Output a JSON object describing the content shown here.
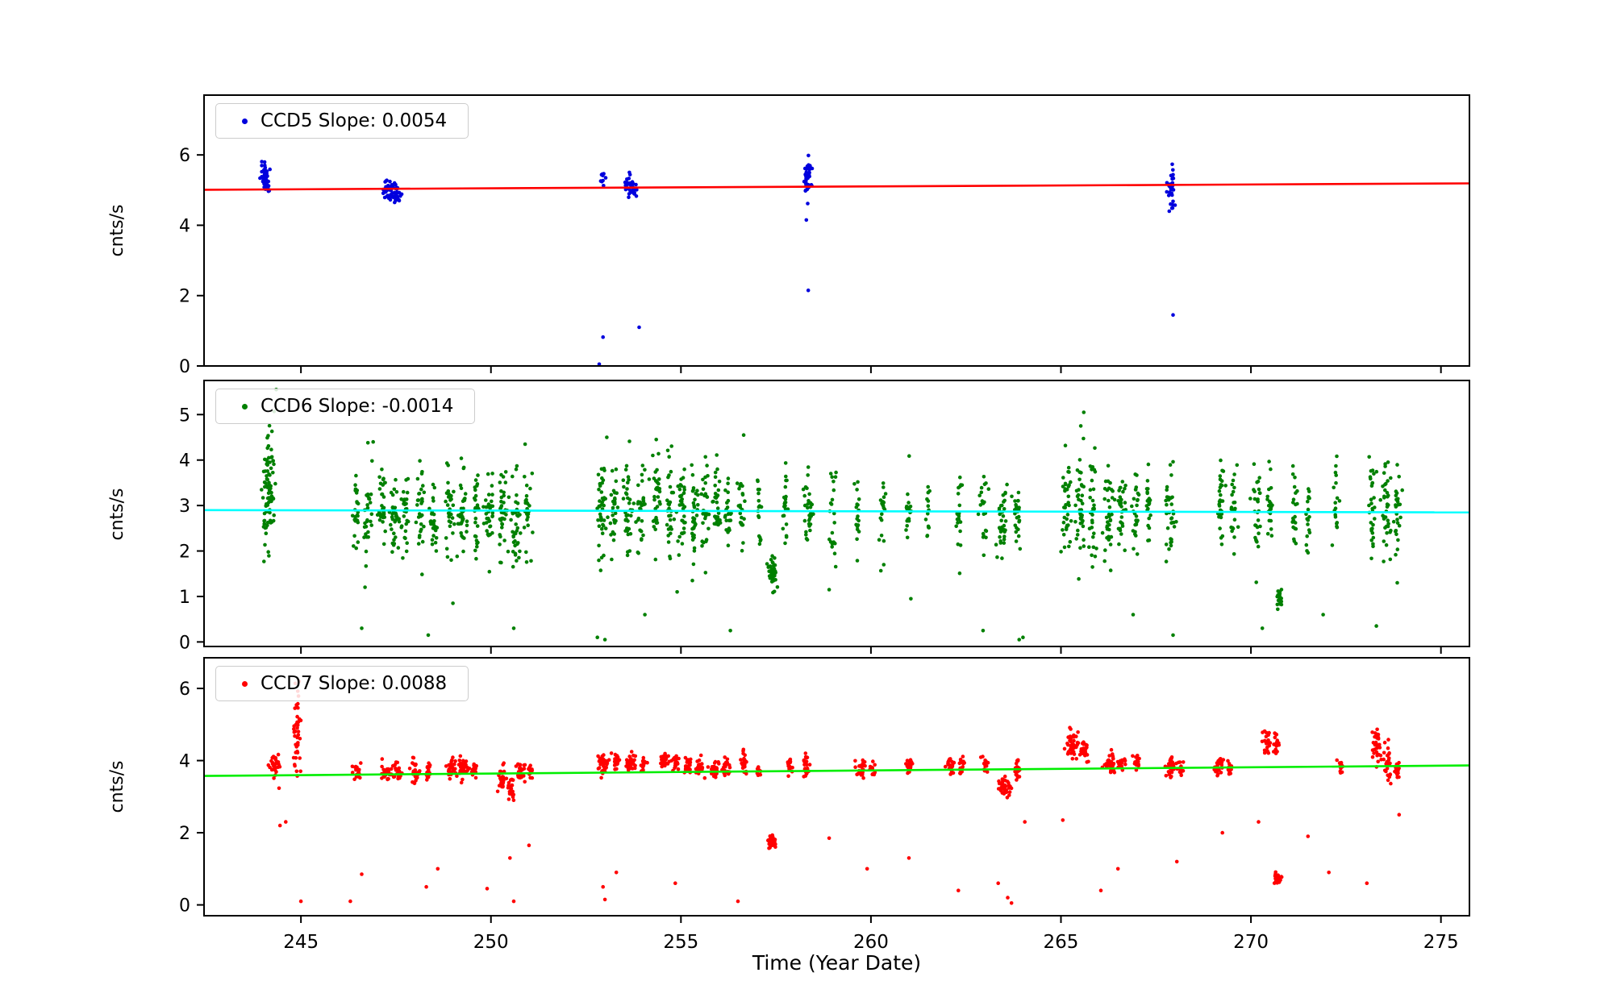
{
  "xlabel_text": "Time (Year Date)",
  "chart_data": {
    "type": "scatter",
    "xlabel": "Time (Year Date)",
    "xlim": [
      242.45,
      275.75
    ],
    "x_ticks": [
      245,
      250,
      255,
      260,
      265,
      270,
      275
    ],
    "grid": false,
    "legend_position": "upper left",
    "panels": [
      {
        "name": "CCD5",
        "legend": "CCD5 Slope: 0.0054",
        "slope": 0.0054,
        "ylabel": "cnts/s",
        "ylim": [
          0,
          7.7
        ],
        "y_ticks": [
          0,
          2,
          4,
          6
        ],
        "point_color": "#0000dd",
        "trend_color": "#ff0000",
        "trend": {
          "y_start": 5.01,
          "y_end": 5.19
        },
        "clusters": [
          [
            244.05,
            5.4,
            0.05,
            0.2,
            40
          ],
          [
            244.1,
            5.1,
            0.04,
            0.08,
            12
          ],
          [
            247.3,
            5.0,
            0.1,
            0.13,
            45
          ],
          [
            247.55,
            4.85,
            0.06,
            0.1,
            20
          ],
          [
            252.95,
            5.35,
            0.03,
            0.1,
            9
          ],
          [
            253.6,
            5.15,
            0.05,
            0.15,
            18
          ],
          [
            253.75,
            5.0,
            0.05,
            0.12,
            20
          ],
          [
            258.35,
            5.45,
            0.05,
            0.3,
            30
          ],
          [
            258.35,
            5.05,
            0.04,
            0.08,
            10
          ],
          [
            267.9,
            5.05,
            0.05,
            0.25,
            32
          ]
        ],
        "outliers": [
          [
            252.85,
            0.05
          ],
          [
            252.95,
            0.82
          ],
          [
            253.9,
            1.1
          ],
          [
            258.35,
            2.15
          ],
          [
            258.3,
            4.15
          ],
          [
            267.95,
            1.45
          ],
          [
            267.85,
            4.4
          ]
        ]
      },
      {
        "name": "CCD6",
        "legend": "CCD6 Slope: -0.0014",
        "slope": -0.0014,
        "ylabel": "cnts/s",
        "ylim": [
          -0.1,
          5.75
        ],
        "y_ticks": [
          0,
          1,
          2,
          3,
          4,
          5
        ],
        "point_color": "#008000",
        "trend_color": "#00ffff",
        "trend": {
          "y_start": 2.9,
          "y_end": 2.85
        },
        "clusters": [
          [
            244.15,
            3.35,
            0.08,
            0.72,
            85
          ],
          [
            246.45,
            2.8,
            0.05,
            0.42,
            25
          ],
          [
            246.75,
            2.85,
            0.05,
            0.48,
            30
          ],
          [
            247.15,
            2.9,
            0.06,
            0.5,
            32
          ],
          [
            247.45,
            2.85,
            0.06,
            0.48,
            32
          ],
          [
            247.75,
            2.9,
            0.05,
            0.48,
            28
          ],
          [
            248.15,
            2.9,
            0.06,
            0.5,
            32
          ],
          [
            248.5,
            2.85,
            0.05,
            0.45,
            26
          ],
          [
            248.9,
            2.9,
            0.06,
            0.5,
            32
          ],
          [
            249.25,
            2.85,
            0.06,
            0.5,
            36
          ],
          [
            249.6,
            2.8,
            0.05,
            0.45,
            26
          ],
          [
            249.95,
            2.85,
            0.06,
            0.5,
            36
          ],
          [
            250.3,
            2.75,
            0.06,
            0.5,
            36
          ],
          [
            250.65,
            2.7,
            0.06,
            0.5,
            36
          ],
          [
            250.95,
            2.8,
            0.05,
            0.45,
            26
          ],
          [
            252.9,
            2.9,
            0.06,
            0.55,
            40
          ],
          [
            253.25,
            2.95,
            0.05,
            0.5,
            30
          ],
          [
            253.6,
            2.9,
            0.06,
            0.55,
            36
          ],
          [
            253.95,
            2.9,
            0.05,
            0.5,
            30
          ],
          [
            254.35,
            2.95,
            0.06,
            0.55,
            36
          ],
          [
            254.7,
            2.9,
            0.05,
            0.5,
            30
          ],
          [
            255.0,
            2.95,
            0.06,
            0.55,
            36
          ],
          [
            255.35,
            2.9,
            0.06,
            0.5,
            36
          ],
          [
            255.65,
            2.9,
            0.05,
            0.5,
            30
          ],
          [
            255.95,
            2.95,
            0.05,
            0.5,
            30
          ],
          [
            256.25,
            2.9,
            0.05,
            0.45,
            22
          ],
          [
            256.6,
            3.0,
            0.04,
            0.55,
            22
          ],
          [
            257.05,
            2.9,
            0.04,
            0.45,
            18
          ],
          [
            257.4,
            1.5,
            0.06,
            0.17,
            42
          ],
          [
            257.75,
            2.9,
            0.04,
            0.45,
            22
          ],
          [
            258.35,
            2.95,
            0.05,
            0.5,
            30
          ],
          [
            259.0,
            2.85,
            0.05,
            0.45,
            22
          ],
          [
            259.65,
            2.85,
            0.04,
            0.4,
            18
          ],
          [
            260.3,
            2.85,
            0.05,
            0.45,
            22
          ],
          [
            261.0,
            2.85,
            0.04,
            0.4,
            18
          ],
          [
            261.5,
            2.9,
            0.04,
            0.4,
            14
          ],
          [
            262.35,
            2.9,
            0.05,
            0.45,
            22
          ],
          [
            262.95,
            2.8,
            0.05,
            0.45,
            22
          ],
          [
            263.45,
            2.7,
            0.07,
            0.4,
            36
          ],
          [
            263.85,
            2.75,
            0.05,
            0.4,
            26
          ],
          [
            265.15,
            2.95,
            0.06,
            0.5,
            36
          ],
          [
            265.5,
            2.95,
            0.06,
            0.55,
            40
          ],
          [
            265.85,
            2.9,
            0.05,
            0.5,
            30
          ],
          [
            266.25,
            2.95,
            0.06,
            0.55,
            36
          ],
          [
            266.6,
            2.9,
            0.05,
            0.5,
            30
          ],
          [
            266.95,
            2.9,
            0.05,
            0.5,
            26
          ],
          [
            267.3,
            2.9,
            0.04,
            0.45,
            22
          ],
          [
            267.9,
            2.9,
            0.06,
            0.5,
            36
          ],
          [
            269.2,
            3.0,
            0.05,
            0.55,
            30
          ],
          [
            269.55,
            2.9,
            0.04,
            0.45,
            22
          ],
          [
            270.15,
            2.95,
            0.05,
            0.55,
            30
          ],
          [
            270.5,
            2.9,
            0.04,
            0.45,
            22
          ],
          [
            270.75,
            0.95,
            0.04,
            0.15,
            22
          ],
          [
            271.15,
            2.9,
            0.04,
            0.45,
            22
          ],
          [
            271.5,
            2.85,
            0.04,
            0.4,
            18
          ],
          [
            272.25,
            2.85,
            0.04,
            0.45,
            18
          ],
          [
            273.2,
            2.95,
            0.05,
            0.5,
            30
          ],
          [
            273.55,
            2.9,
            0.06,
            0.55,
            36
          ],
          [
            273.85,
            2.9,
            0.05,
            0.5,
            26
          ]
        ],
        "outliers": [
          [
            244.35,
            5.55
          ],
          [
            246.6,
            0.3
          ],
          [
            248.35,
            0.15
          ],
          [
            249.0,
            0.85
          ],
          [
            250.6,
            0.3
          ],
          [
            252.8,
            0.1
          ],
          [
            253.0,
            0.05
          ],
          [
            254.05,
            0.6
          ],
          [
            254.9,
            1.1
          ],
          [
            255.3,
            1.35
          ],
          [
            256.3,
            0.25
          ],
          [
            258.9,
            1.15
          ],
          [
            261.05,
            0.95
          ],
          [
            262.95,
            0.25
          ],
          [
            263.9,
            0.05
          ],
          [
            264.0,
            0.1
          ],
          [
            265.6,
            5.05
          ],
          [
            266.9,
            0.6
          ],
          [
            267.95,
            0.15
          ],
          [
            270.3,
            0.3
          ],
          [
            271.9,
            0.6
          ],
          [
            273.3,
            0.35
          ],
          [
            273.85,
            1.3
          ],
          [
            246.9,
            4.4
          ],
          [
            250.9,
            4.35
          ],
          [
            253.05,
            4.5
          ],
          [
            256.65,
            4.55
          ],
          [
            254.35,
            4.45
          ]
        ]
      },
      {
        "name": "CCD7",
        "legend": "CCD7 Slope: 0.0088",
        "slope": 0.0088,
        "ylabel": "cnts/s",
        "ylim": [
          -0.3,
          6.85
        ],
        "y_ticks": [
          0,
          2,
          4,
          6
        ],
        "point_color": "#ff0000",
        "trend_color": "#00ee00",
        "trend": {
          "y_start": 3.575,
          "y_end": 3.865
        },
        "clusters": [
          [
            244.3,
            3.9,
            0.07,
            0.17,
            32
          ],
          [
            244.9,
            4.6,
            0.05,
            0.7,
            42
          ],
          [
            246.5,
            3.7,
            0.05,
            0.12,
            18
          ],
          [
            247.25,
            3.65,
            0.07,
            0.12,
            28
          ],
          [
            247.55,
            3.7,
            0.06,
            0.12,
            26
          ],
          [
            248.0,
            3.7,
            0.07,
            0.14,
            28
          ],
          [
            248.35,
            3.65,
            0.04,
            0.1,
            14
          ],
          [
            248.95,
            3.75,
            0.06,
            0.12,
            28
          ],
          [
            249.25,
            3.8,
            0.07,
            0.12,
            32
          ],
          [
            249.55,
            3.75,
            0.05,
            0.1,
            22
          ],
          [
            250.3,
            3.55,
            0.06,
            0.2,
            28
          ],
          [
            250.55,
            3.25,
            0.05,
            0.15,
            22
          ],
          [
            250.8,
            3.65,
            0.06,
            0.15,
            28
          ],
          [
            251.05,
            3.7,
            0.04,
            0.1,
            12
          ],
          [
            252.95,
            3.9,
            0.07,
            0.15,
            32
          ],
          [
            253.3,
            3.95,
            0.05,
            0.12,
            22
          ],
          [
            253.7,
            3.95,
            0.07,
            0.14,
            32
          ],
          [
            254.0,
            3.9,
            0.04,
            0.1,
            18
          ],
          [
            254.55,
            3.95,
            0.06,
            0.14,
            30
          ],
          [
            254.85,
            3.9,
            0.05,
            0.12,
            22
          ],
          [
            255.2,
            3.85,
            0.06,
            0.14,
            30
          ],
          [
            255.5,
            3.8,
            0.05,
            0.12,
            22
          ],
          [
            255.9,
            3.75,
            0.06,
            0.14,
            28
          ],
          [
            256.2,
            3.8,
            0.05,
            0.12,
            22
          ],
          [
            256.65,
            4.0,
            0.04,
            0.14,
            22
          ],
          [
            257.05,
            3.75,
            0.03,
            0.1,
            10
          ],
          [
            257.4,
            1.75,
            0.05,
            0.08,
            38
          ],
          [
            257.85,
            3.85,
            0.04,
            0.1,
            18
          ],
          [
            258.3,
            3.9,
            0.05,
            0.2,
            26
          ],
          [
            259.75,
            3.8,
            0.06,
            0.12,
            26
          ],
          [
            260.05,
            3.75,
            0.04,
            0.1,
            12
          ],
          [
            261.0,
            3.85,
            0.05,
            0.12,
            22
          ],
          [
            262.1,
            3.9,
            0.05,
            0.12,
            22
          ],
          [
            262.4,
            3.85,
            0.04,
            0.12,
            18
          ],
          [
            263.0,
            3.9,
            0.04,
            0.15,
            14
          ],
          [
            263.5,
            3.25,
            0.07,
            0.15,
            36
          ],
          [
            263.85,
            3.8,
            0.05,
            0.15,
            22
          ],
          [
            265.3,
            4.45,
            0.08,
            0.17,
            46
          ],
          [
            265.6,
            4.35,
            0.05,
            0.15,
            26
          ],
          [
            266.3,
            3.95,
            0.07,
            0.14,
            32
          ],
          [
            266.6,
            3.9,
            0.05,
            0.12,
            22
          ],
          [
            267.0,
            3.95,
            0.04,
            0.12,
            18
          ],
          [
            267.9,
            3.85,
            0.07,
            0.14,
            32
          ],
          [
            268.15,
            3.8,
            0.04,
            0.1,
            12
          ],
          [
            269.15,
            3.85,
            0.06,
            0.12,
            28
          ],
          [
            269.45,
            3.8,
            0.04,
            0.1,
            18
          ],
          [
            270.4,
            4.5,
            0.05,
            0.2,
            26
          ],
          [
            270.65,
            4.35,
            0.04,
            0.22,
            18
          ],
          [
            270.7,
            0.75,
            0.04,
            0.1,
            28
          ],
          [
            272.35,
            3.85,
            0.04,
            0.1,
            14
          ],
          [
            273.3,
            4.35,
            0.06,
            0.22,
            32
          ],
          [
            273.6,
            4.0,
            0.05,
            0.28,
            26
          ],
          [
            273.85,
            3.75,
            0.04,
            0.12,
            18
          ]
        ],
        "outliers": [
          [
            244.45,
            2.2
          ],
          [
            244.6,
            2.3
          ],
          [
            245.0,
            0.1
          ],
          [
            244.95,
            6.2
          ],
          [
            246.3,
            0.1
          ],
          [
            246.6,
            0.85
          ],
          [
            248.3,
            0.5
          ],
          [
            248.6,
            1.0
          ],
          [
            249.9,
            0.45
          ],
          [
            250.5,
            1.3
          ],
          [
            250.6,
            0.1
          ],
          [
            251.0,
            1.65
          ],
          [
            252.95,
            0.5
          ],
          [
            253.0,
            0.15
          ],
          [
            253.3,
            0.9
          ],
          [
            254.85,
            0.6
          ],
          [
            256.5,
            0.1
          ],
          [
            258.9,
            1.85
          ],
          [
            259.9,
            1.0
          ],
          [
            261.0,
            1.3
          ],
          [
            262.3,
            0.4
          ],
          [
            263.35,
            0.6
          ],
          [
            263.6,
            0.2
          ],
          [
            263.7,
            0.05
          ],
          [
            264.05,
            2.3
          ],
          [
            265.05,
            2.35
          ],
          [
            266.05,
            0.4
          ],
          [
            266.5,
            1.0
          ],
          [
            268.05,
            1.2
          ],
          [
            269.25,
            2.0
          ],
          [
            271.5,
            1.9
          ],
          [
            272.05,
            0.9
          ],
          [
            273.05,
            0.6
          ],
          [
            273.9,
            2.5
          ],
          [
            270.2,
            2.3
          ]
        ]
      }
    ]
  }
}
